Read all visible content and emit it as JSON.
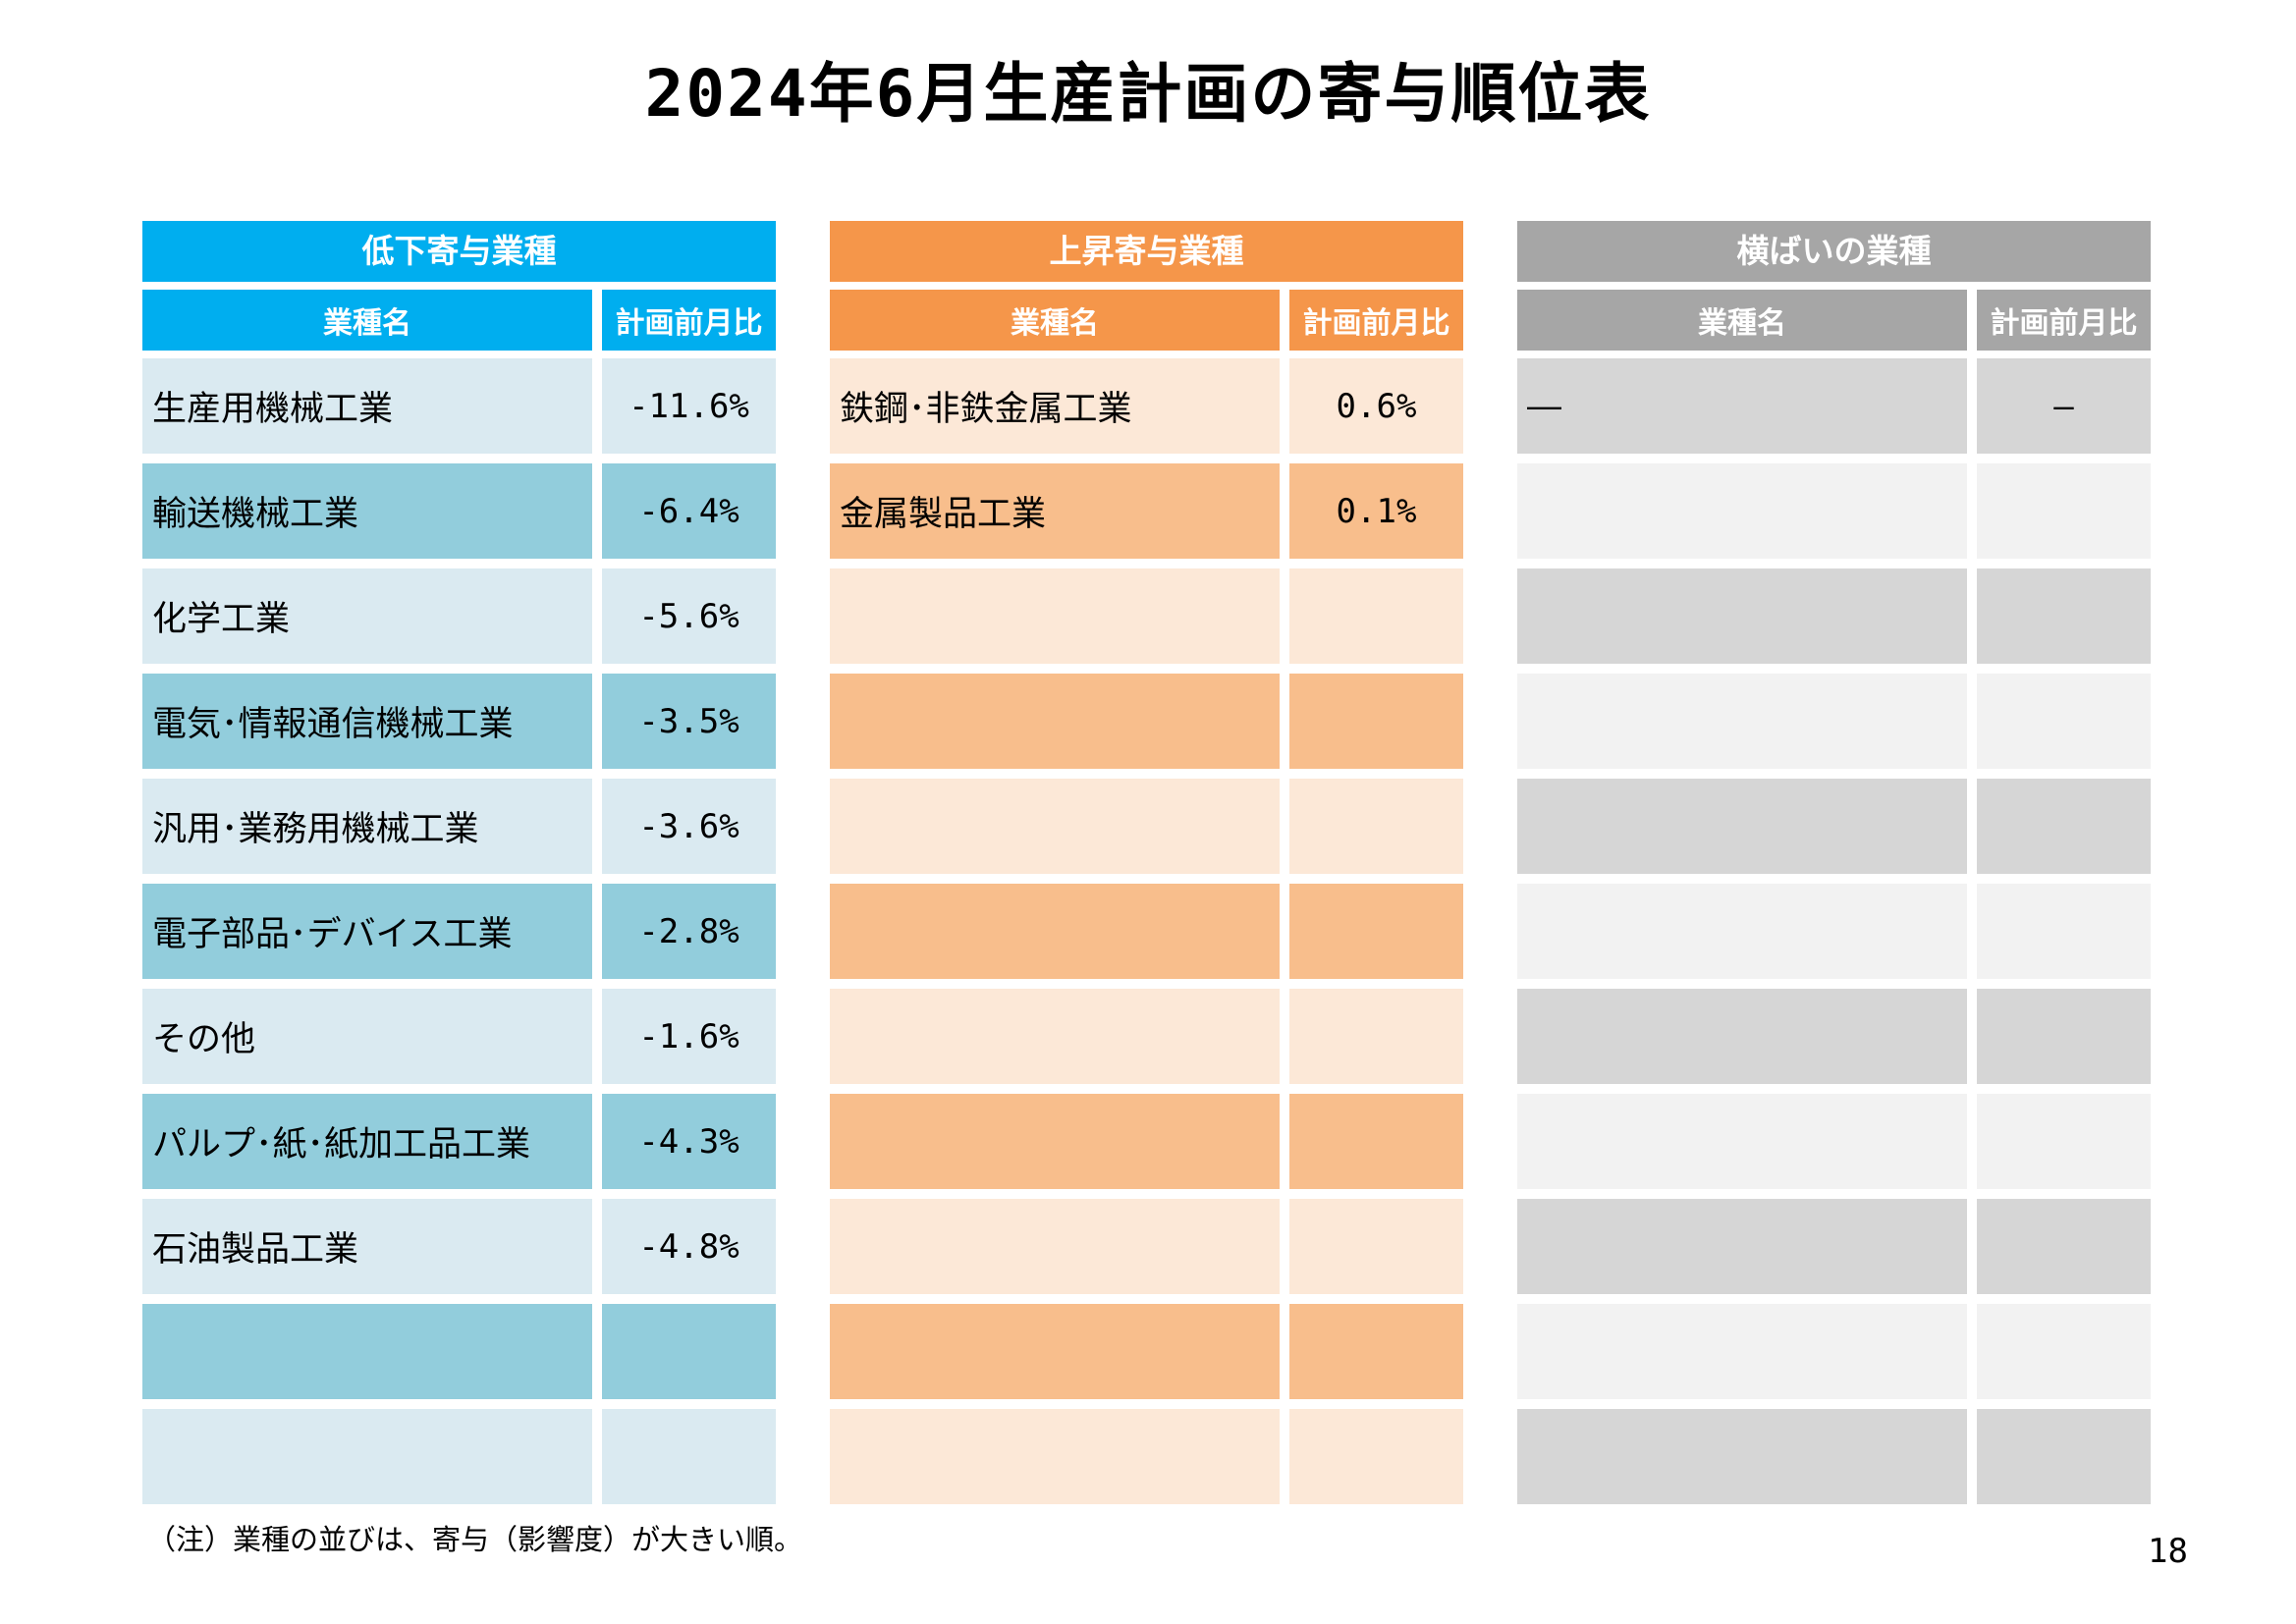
{
  "title": "2024年6月生産計画の寄与順位表",
  "note": "（注）業種の並びは、寄与（影響度）が大きい順。",
  "page_number": "18",
  "tables": [
    {
      "id": "decline",
      "header": "低下寄与業種",
      "columns": {
        "name": "業種名",
        "value": "計画前月比"
      },
      "colors": {
        "header": "#00AEEF",
        "light": "#DAEAF1",
        "dark": "#92CDDC"
      },
      "first_row_shade": "light",
      "rows": [
        {
          "name": "生産用機械工業",
          "value": "-11.6%"
        },
        {
          "name": "輸送機械工業",
          "value": "-6.4%"
        },
        {
          "name": "化学工業",
          "value": "-5.6%"
        },
        {
          "name": "電気･情報通信機械工業",
          "value": "-3.5%"
        },
        {
          "name": "汎用･業務用機械工業",
          "value": "-3.6%"
        },
        {
          "name": "電子部品･デバイス工業",
          "value": "-2.8%"
        },
        {
          "name": "その他",
          "value": "-1.6%"
        },
        {
          "name": "パルプ･紙･紙加工品工業",
          "value": "-4.3%"
        },
        {
          "name": "石油製品工業",
          "value": "-4.8%"
        },
        {
          "name": "",
          "value": ""
        },
        {
          "name": "",
          "value": ""
        }
      ]
    },
    {
      "id": "rise",
      "header": "上昇寄与業種",
      "columns": {
        "name": "業種名",
        "value": "計画前月比"
      },
      "colors": {
        "header": "#F5964A",
        "light": "#FCE8D7",
        "dark": "#F8BE8C"
      },
      "first_row_shade": "light",
      "rows": [
        {
          "name": "鉄鋼･非鉄金属工業",
          "value": "0.6%"
        },
        {
          "name": "金属製品工業",
          "value": "0.1%"
        },
        {
          "name": "",
          "value": ""
        },
        {
          "name": "",
          "value": ""
        },
        {
          "name": "",
          "value": ""
        },
        {
          "name": "",
          "value": ""
        },
        {
          "name": "",
          "value": ""
        },
        {
          "name": "",
          "value": ""
        },
        {
          "name": "",
          "value": ""
        },
        {
          "name": "",
          "value": ""
        },
        {
          "name": "",
          "value": ""
        }
      ]
    },
    {
      "id": "flat",
      "header": "横ばいの業種",
      "columns": {
        "name": "業種名",
        "value": "計画前月比"
      },
      "colors": {
        "header": "#A6A6A6",
        "light": "#F2F2F2",
        "dark": "#D6D6D6"
      },
      "first_row_shade": "dark",
      "rows": [
        {
          "name": "—",
          "value": "—"
        },
        {
          "name": "",
          "value": ""
        },
        {
          "name": "",
          "value": ""
        },
        {
          "name": "",
          "value": ""
        },
        {
          "name": "",
          "value": ""
        },
        {
          "name": "",
          "value": ""
        },
        {
          "name": "",
          "value": ""
        },
        {
          "name": "",
          "value": ""
        },
        {
          "name": "",
          "value": ""
        },
        {
          "name": "",
          "value": ""
        },
        {
          "name": "",
          "value": ""
        }
      ]
    }
  ]
}
